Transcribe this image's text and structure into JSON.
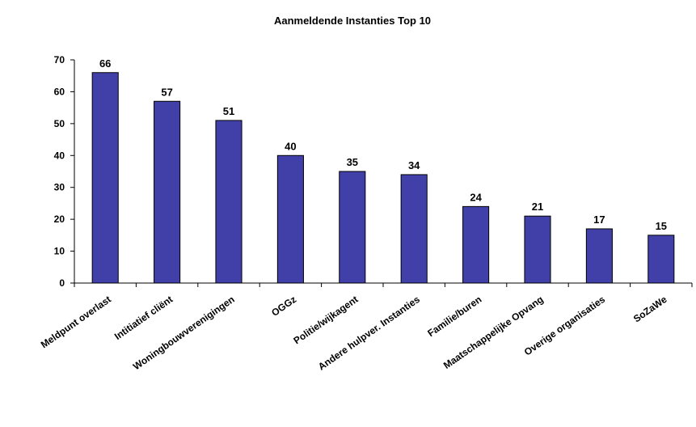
{
  "chart_data": {
    "type": "bar",
    "title": "Aanmeldende Instanties Top 10",
    "categories": [
      "Meldpunt overlast",
      "Intitiatief cliënt",
      "Woningbouwverenigingen",
      "OGGz",
      "Politie/wijkagent",
      "Andere hulpver. Instanties",
      "Familie/buren",
      "Maatschappelijke Opvang",
      "Overige organisaties",
      "SoZaWe"
    ],
    "values": [
      66,
      57,
      51,
      40,
      35,
      34,
      24,
      21,
      17,
      15
    ],
    "ylim": [
      0,
      70
    ],
    "yticks": [
      "0",
      "10",
      "20",
      "30",
      "40",
      "50",
      "60",
      "70"
    ],
    "grid": false,
    "legend": "none",
    "bar_color": "#4040a8",
    "bar_stroke": "#000000"
  }
}
